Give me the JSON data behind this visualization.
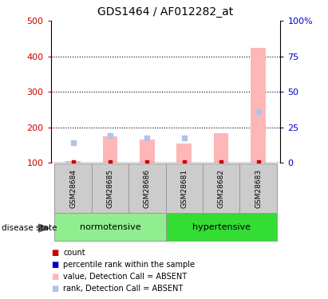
{
  "title": "GDS1464 / AF012282_at",
  "samples": [
    "GSM28684",
    "GSM28685",
    "GSM28686",
    "GSM28681",
    "GSM28682",
    "GSM28683"
  ],
  "group_defs": [
    {
      "label": "normotensive",
      "start": 0,
      "end": 2,
      "color": "#90ee90"
    },
    {
      "label": "hypertensive",
      "start": 3,
      "end": 5,
      "color": "#33dd33"
    }
  ],
  "bar_bottom": 100,
  "value_absent": [
    105,
    175,
    165,
    155,
    185,
    425
  ],
  "rank_absent": [
    158,
    178,
    170,
    170,
    0,
    245
  ],
  "ylim_left": [
    100,
    500
  ],
  "ylim_right": [
    0,
    100
  ],
  "yticks_left": [
    100,
    200,
    300,
    400,
    500
  ],
  "ytick_labels_left": [
    "100",
    "200",
    "300",
    "400",
    "500"
  ],
  "yticks_right": [
    0,
    25,
    50,
    75,
    100
  ],
  "ytick_labels_right": [
    "0",
    "25",
    "50",
    "75",
    "100%"
  ],
  "color_count": "#cc0000",
  "color_percentile": "#0000cc",
  "color_value_absent": "#ffb6b6",
  "color_rank_absent": "#b0c4e8",
  "label_area_color": "#cccccc",
  "label_area_border": "#999999",
  "legend_items": [
    {
      "color": "#cc0000",
      "label": "count"
    },
    {
      "color": "#0000cc",
      "label": "percentile rank within the sample"
    },
    {
      "color": "#ffb6b6",
      "label": "value, Detection Call = ABSENT"
    },
    {
      "color": "#b0c4e8",
      "label": "rank, Detection Call = ABSENT"
    }
  ]
}
